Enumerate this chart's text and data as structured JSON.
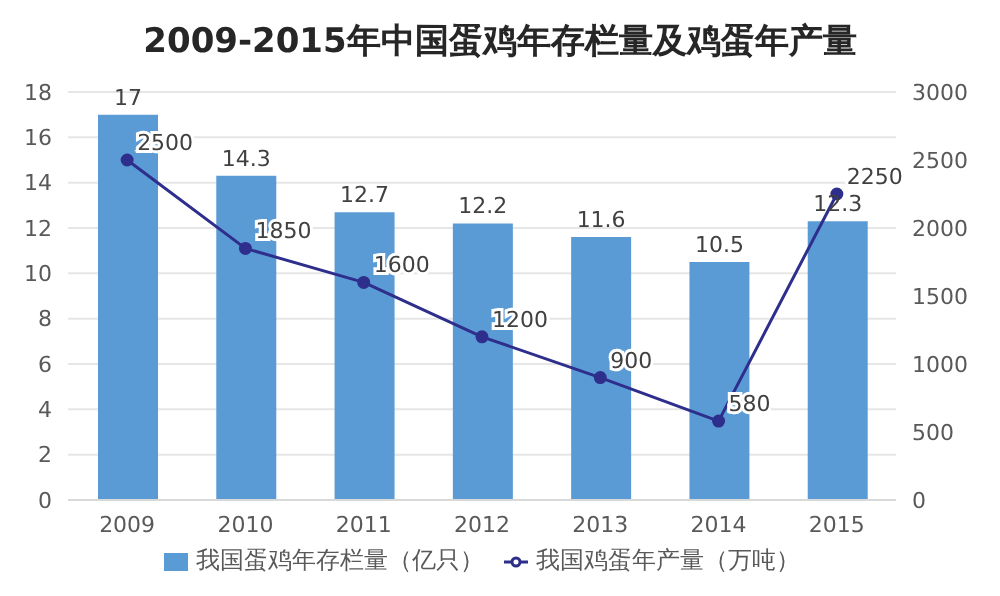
{
  "chart_data": {
    "type": "bar",
    "title": "2009-2015年中国蛋鸡年存栏量及鸡蛋年产量",
    "categories": [
      "2009",
      "2010",
      "2011",
      "2012",
      "2013",
      "2014",
      "2015"
    ],
    "series": [
      {
        "name": "我国蛋鸡年存栏量（亿只）",
        "color": "#5b9bd5",
        "values": [
          17,
          14.3,
          12.7,
          12.2,
          11.6,
          10.5,
          12.3
        ]
      },
      {
        "name": "我国鸡蛋年产量（万吨）",
        "type": "line",
        "axis": "y2",
        "color": "#2e2e8c",
        "marker": "circle",
        "values": [
          2500,
          1850,
          1600,
          1200,
          900,
          580,
          2250
        ]
      }
    ],
    "ylim": [
      0,
      18
    ],
    "yticks": [
      0,
      2,
      4,
      6,
      8,
      10,
      12,
      14,
      16,
      18
    ],
    "y2lim": [
      0,
      3000
    ],
    "y2ticks": [
      0,
      500,
      1000,
      1500,
      2000,
      2500,
      3000
    ],
    "grid": "y",
    "legend": "bottom",
    "data_labels": true
  }
}
